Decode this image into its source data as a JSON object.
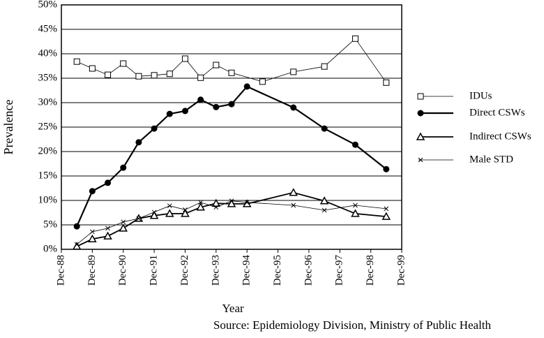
{
  "chart_data": {
    "type": "line",
    "x_label": "Year",
    "y_label": "Prevalence",
    "source": "Source: Epidemiology Division, Ministry of Public Health",
    "xlim": [
      "Dec-88",
      "Dec-99"
    ],
    "xticks": [
      "Dec-88",
      "Dec-89",
      "Dec-90",
      "Dec-91",
      "Dec-92",
      "Dec-93",
      "Dec-94",
      "Dec-95",
      "Dec-96",
      "Dec-97",
      "Dec-98",
      "Dec-99"
    ],
    "ylim": [
      0,
      50
    ],
    "yticks": [
      {
        "value": 0,
        "label": "0%"
      },
      {
        "value": 5,
        "label": "5%"
      },
      {
        "value": 10,
        "label": "10%"
      },
      {
        "value": 15,
        "label": "15%"
      },
      {
        "value": 20,
        "label": "20%"
      },
      {
        "value": 25,
        "label": "25%"
      },
      {
        "value": 30,
        "label": "30%"
      },
      {
        "value": 35,
        "label": "35%"
      },
      {
        "value": 40,
        "label": "40%"
      },
      {
        "value": 45,
        "label": "45%"
      },
      {
        "value": 50,
        "label": "50%"
      }
    ],
    "grid": true,
    "legend": "right",
    "series": [
      {
        "name": "IDUs",
        "color": "#000000",
        "marker": "square",
        "line_width": 0.8,
        "x": [
          "Jun-89",
          "Dec-89",
          "Jun-90",
          "Dec-90",
          "Jun-91",
          "Dec-91",
          "Jun-92",
          "Dec-92",
          "Jun-93",
          "Dec-93",
          "Jun-94",
          "Jun-95",
          "Jun-96",
          "Jun-97",
          "Jun-98",
          "Jun-99"
        ],
        "values": [
          38.4,
          37,
          35.7,
          38,
          35.4,
          35.6,
          35.9,
          39,
          35.1,
          37.7,
          36.1,
          34.3,
          36.3,
          37.4,
          43.1,
          34.1
        ]
      },
      {
        "name": "Direct CSWs",
        "color": "#000000",
        "marker": "circle",
        "line_width": 2.2,
        "x": [
          "Jun-89",
          "Dec-89",
          "Jun-90",
          "Dec-90",
          "Jun-91",
          "Dec-91",
          "Jun-92",
          "Dec-92",
          "Jun-93",
          "Dec-93",
          "Jun-94",
          "Dec-94",
          "Jun-96",
          "Jun-97",
          "Jun-98",
          "Jun-99"
        ],
        "values": [
          4.7,
          11.9,
          13.6,
          16.7,
          21.9,
          24.7,
          27.7,
          28.3,
          30.6,
          29.1,
          29.7,
          33.3,
          29,
          24.7,
          21.4,
          16.4
        ]
      },
      {
        "name": "Indirect CSWs",
        "color": "#000000",
        "marker": "triangle",
        "line_width": 1.8,
        "x": [
          "Jun-89",
          "Dec-89",
          "Jun-90",
          "Dec-90",
          "Jun-91",
          "Dec-91",
          "Jun-92",
          "Dec-92",
          "Jun-93",
          "Dec-93",
          "Jun-94",
          "Dec-94",
          "Jun-96",
          "Jun-97",
          "Jun-98",
          "Jun-99"
        ],
        "values": [
          0.6,
          2.1,
          2.7,
          4.3,
          6.3,
          6.9,
          7.3,
          7.3,
          8.6,
          9.4,
          9.3,
          9.3,
          11.6,
          9.9,
          7.3,
          6.7
        ]
      },
      {
        "name": "Male STD",
        "color": "#000000",
        "marker": "x",
        "line_width": 0.8,
        "x": [
          "Jun-89",
          "Dec-89",
          "Jun-90",
          "Dec-90",
          "Jun-91",
          "Dec-91",
          "Jun-92",
          "Dec-92",
          "Jun-93",
          "Dec-93",
          "Jun-94",
          "Dec-94",
          "Jun-96",
          "Jun-97",
          "Jun-98",
          "Jun-99"
        ],
        "values": [
          1,
          3.6,
          4.3,
          5.6,
          6.3,
          7.6,
          8.9,
          8.1,
          9.6,
          8.6,
          9.9,
          9.6,
          9,
          8,
          9,
          8.3
        ]
      }
    ]
  }
}
